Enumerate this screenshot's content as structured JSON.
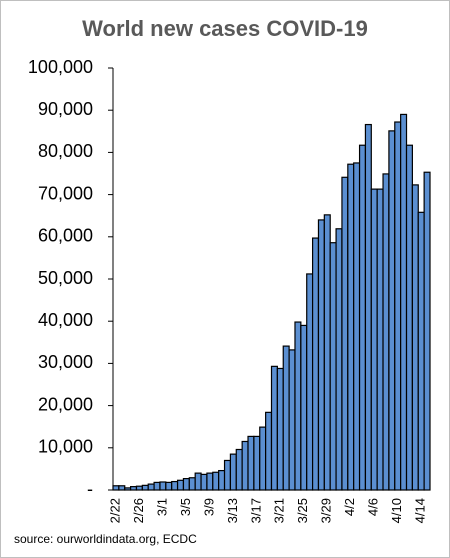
{
  "chart_data": {
    "type": "bar",
    "title": "World new cases COVID-19",
    "source": "source: ourworldindata.org, ECDC",
    "categories": [
      "2/22",
      null,
      null,
      null,
      "2/26",
      null,
      null,
      null,
      "3/1",
      null,
      null,
      null,
      "3/5",
      null,
      null,
      null,
      "3/9",
      null,
      null,
      null,
      "3/13",
      null,
      null,
      null,
      "3/17",
      null,
      null,
      null,
      "3/21",
      null,
      null,
      null,
      "3/25",
      null,
      null,
      null,
      "3/29",
      null,
      null,
      null,
      "4/2",
      null,
      null,
      null,
      "4/6",
      null,
      null,
      null,
      "4/10",
      null,
      null,
      null,
      "4/14",
      null
    ],
    "values": [
      1000,
      1000,
      500,
      800,
      900,
      1100,
      1400,
      1800,
      1900,
      1800,
      2000,
      2300,
      2700,
      2900,
      4000,
      3700,
      4000,
      4200,
      4600,
      7000,
      8500,
      9600,
      11500,
      12700,
      12700,
      14900,
      18400,
      29300,
      28800,
      34100,
      33200,
      39800,
      39000,
      51200,
      59700,
      64000,
      65200,
      58600,
      61900,
      74100,
      77200,
      77500,
      81700,
      86600,
      71300,
      71300,
      74900,
      85100,
      87200,
      89000,
      81700,
      72300,
      65800,
      75300
    ],
    "color": "#5b8fd1",
    "ylim": [
      0,
      100000
    ],
    "yticks": [
      {
        "value": 0,
        "label": "-"
      },
      {
        "value": 10000,
        "label": "10,000"
      },
      {
        "value": 20000,
        "label": "20,000"
      },
      {
        "value": 30000,
        "label": "30,000"
      },
      {
        "value": 40000,
        "label": "40,000"
      },
      {
        "value": 50000,
        "label": "50,000"
      },
      {
        "value": 60000,
        "label": "60,000"
      },
      {
        "value": 70000,
        "label": "70,000"
      },
      {
        "value": 80000,
        "label": "80,000"
      },
      {
        "value": 90000,
        "label": "90,000"
      },
      {
        "value": 100000,
        "label": "100,000"
      }
    ],
    "grid": false
  }
}
